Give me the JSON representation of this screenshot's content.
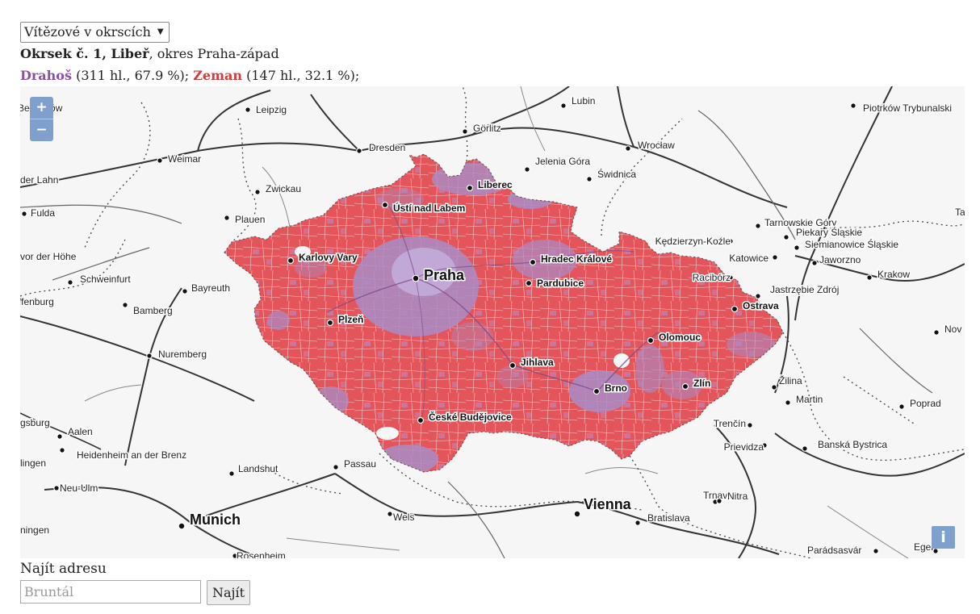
{
  "dropdown": {
    "selected": "Vítězové v okrscích"
  },
  "district": {
    "name": "Okrsek č. 1, Libeř",
    "county": ", okres Praha-západ"
  },
  "results": [
    {
      "name": "Drahoš",
      "detail": " (311 hl., 67.9 %); ",
      "color": "#8b4fa8"
    },
    {
      "name": "Zeman",
      "detail": " (147 hl., 32.1 %);",
      "color": "#d23b3b"
    }
  ],
  "map": {
    "zoom_in": "+",
    "zoom_out": "−",
    "info_button": "i",
    "fill_colors": {
      "zeman": "#e4555b",
      "drahos": "#a98cc6"
    },
    "cities_major": [
      "Praha",
      "Munich",
      "Vienna"
    ],
    "cities_inside": [
      "Karlovy Vary",
      "Ústí nad Labem",
      "Liberec",
      "Hradec Králové",
      "Pardubice",
      "Plzeň",
      "Jihlava",
      "Olomouc",
      "Ostrava",
      "Brno",
      "Zlín",
      "České Budějovice"
    ],
    "cities_outside": [
      "Leipzig",
      "Lubin",
      "Bełchatów",
      "Piotrków Trybunalski",
      "Görlitz",
      "Dresden",
      "Wrocław",
      "Jelenia Góra",
      "Świdnica",
      "Weimar",
      "der Lahn",
      "Zwickau",
      "Fulda",
      "Plauen",
      "Tarnowskie Góry",
      "Piekary Śląskie",
      "Siemianowice Śląskie",
      "Kędzierzyn-Koźle",
      "Katowice",
      "Jaworzno",
      "Racibórz",
      "Krakow",
      "vor der Höhe",
      "Schweinfurt",
      "Bayreuth",
      "ffenburg",
      "Bamberg",
      "Jastrzębie Zdrój",
      "Nuremberg",
      "Nov",
      "Žilina",
      "Martin",
      "Poprad",
      "gsburg",
      "Aalen",
      "Heidenheim an der Brenz",
      "Trenčín",
      "Prievidza",
      "Banská Bystrica",
      "lingen",
      "Landshut",
      "Passau",
      "Neu-Ulm",
      "Trnava",
      "Nitra",
      "Wels",
      "Bratislava",
      "ningen",
      "Rosenheim",
      "Parádsasvár",
      "Eger",
      "Ta"
    ]
  },
  "search": {
    "label": "Najít adresu",
    "placeholder": "Bruntál",
    "button": "Najít"
  }
}
